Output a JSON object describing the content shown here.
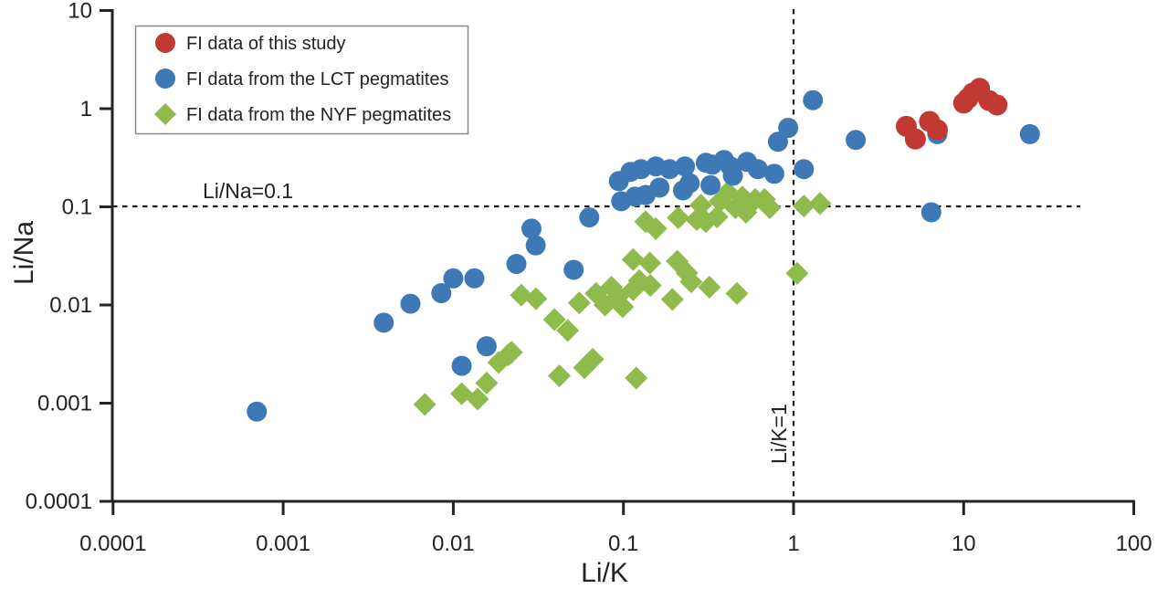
{
  "chart_data": {
    "type": "scatter",
    "title": "",
    "xlabel": "Li/K",
    "ylabel": "Li/Na",
    "x_scale": "log",
    "y_scale": "log",
    "xlim": [
      0.0001,
      100
    ],
    "ylim": [
      0.0001,
      10
    ],
    "grid": false,
    "legend_position": "top-left",
    "x_ticks": {
      "values": [
        0.0001,
        0.001,
        0.01,
        0.1,
        1,
        10,
        100
      ],
      "labels": [
        "0.0001",
        "0.001",
        "0.01",
        "0.1",
        "1",
        "10",
        "100"
      ]
    },
    "y_ticks": {
      "values": [
        10,
        1,
        0.1,
        0.01,
        0.001,
        0.0001
      ],
      "labels": [
        "10",
        "1",
        "0.1",
        "0.01",
        "0.001",
        "0.0001"
      ]
    },
    "reference_lines": [
      {
        "axis": "y",
        "value": 0.1,
        "label": "Li/Na=0.1",
        "style": "dashed"
      },
      {
        "axis": "x",
        "value": 1,
        "label": "Li/K=1",
        "style": "dashed"
      }
    ],
    "series": [
      {
        "name": "FI data of this study",
        "marker": "circle",
        "color": "#c03a33",
        "points": [
          [
            4.6,
            0.66
          ],
          [
            5.2,
            0.49
          ],
          [
            6.3,
            0.74
          ],
          [
            7.0,
            0.61
          ],
          [
            10.0,
            1.14
          ],
          [
            10.6,
            1.27
          ],
          [
            11.3,
            1.44
          ],
          [
            12.4,
            1.61
          ],
          [
            14.1,
            1.21
          ],
          [
            15.7,
            1.09
          ]
        ]
      },
      {
        "name": "FI data from the LCT pegmatites",
        "marker": "circle",
        "color": "#3e79b6",
        "points": [
          [
            0.0007,
            0.00082
          ],
          [
            0.0039,
            0.0066
          ],
          [
            0.0056,
            0.0103
          ],
          [
            0.0085,
            0.0132
          ],
          [
            0.01,
            0.0187
          ],
          [
            0.0133,
            0.0187
          ],
          [
            0.0235,
            0.0262
          ],
          [
            0.0288,
            0.06
          ],
          [
            0.0305,
            0.0405
          ],
          [
            0.051,
            0.0228
          ],
          [
            0.0157,
            0.0038
          ],
          [
            0.0112,
            0.0024
          ],
          [
            0.063,
            0.078
          ],
          [
            0.094,
            0.183
          ],
          [
            0.11,
            0.227
          ],
          [
            0.127,
            0.242
          ],
          [
            0.155,
            0.258
          ],
          [
            0.163,
            0.157
          ],
          [
            0.187,
            0.242
          ],
          [
            0.23,
            0.258
          ],
          [
            0.245,
            0.174
          ],
          [
            0.305,
            0.281
          ],
          [
            0.333,
            0.269
          ],
          [
            0.39,
            0.3
          ],
          [
            0.426,
            0.258
          ],
          [
            0.44,
            0.208
          ],
          [
            0.533,
            0.287
          ],
          [
            0.617,
            0.242
          ],
          [
            0.77,
            0.217
          ],
          [
            0.81,
            0.46
          ],
          [
            0.93,
            0.637
          ],
          [
            1.15,
            0.242
          ],
          [
            1.3,
            1.22
          ],
          [
            2.32,
            0.48
          ],
          [
            0.097,
            0.114
          ],
          [
            0.117,
            0.127
          ],
          [
            0.135,
            0.132
          ],
          [
            0.224,
            0.147
          ],
          [
            0.325,
            0.166
          ],
          [
            7.0,
            0.55
          ],
          [
            24.5,
            0.55
          ],
          [
            6.45,
            0.088
          ]
        ]
      },
      {
        "name": "FI data from the NYF pegmatites",
        "marker": "diamond",
        "color": "#8fbb4c",
        "points": [
          [
            0.0068,
            0.00097
          ],
          [
            0.0112,
            0.00125
          ],
          [
            0.0139,
            0.0011
          ],
          [
            0.0157,
            0.0016
          ],
          [
            0.0185,
            0.0026
          ],
          [
            0.021,
            0.0031
          ],
          [
            0.022,
            0.0033
          ],
          [
            0.042,
            0.0019
          ],
          [
            0.059,
            0.0023
          ],
          [
            0.066,
            0.0028
          ],
          [
            0.119,
            0.0018
          ],
          [
            0.0251,
            0.0126
          ],
          [
            0.0306,
            0.0116
          ],
          [
            0.0393,
            0.0071
          ],
          [
            0.047,
            0.0055
          ],
          [
            0.055,
            0.0105
          ],
          [
            0.069,
            0.0131
          ],
          [
            0.078,
            0.01
          ],
          [
            0.085,
            0.0152
          ],
          [
            0.093,
            0.0123
          ],
          [
            0.099,
            0.0096
          ],
          [
            0.114,
            0.0143
          ],
          [
            0.124,
            0.0177
          ],
          [
            0.144,
            0.0158
          ],
          [
            0.194,
            0.0114
          ],
          [
            0.236,
            0.0212
          ],
          [
            0.25,
            0.0172
          ],
          [
            0.32,
            0.0152
          ],
          [
            0.465,
            0.0131
          ],
          [
            0.114,
            0.029
          ],
          [
            0.143,
            0.0267
          ],
          [
            0.207,
            0.0279
          ],
          [
            0.135,
            0.0706
          ],
          [
            0.155,
            0.06
          ],
          [
            0.21,
            0.0773
          ],
          [
            0.27,
            0.0741
          ],
          [
            0.305,
            0.0706
          ],
          [
            0.355,
            0.0791
          ],
          [
            0.285,
            0.104
          ],
          [
            0.37,
            0.114
          ],
          [
            0.41,
            0.141
          ],
          [
            0.455,
            0.098
          ],
          [
            0.5,
            0.126
          ],
          [
            0.525,
            0.088
          ],
          [
            0.595,
            0.119
          ],
          [
            0.675,
            0.119
          ],
          [
            0.725,
            0.098
          ],
          [
            1.15,
            0.102
          ],
          [
            1.43,
            0.108
          ],
          [
            1.05,
            0.021
          ]
        ]
      }
    ]
  }
}
